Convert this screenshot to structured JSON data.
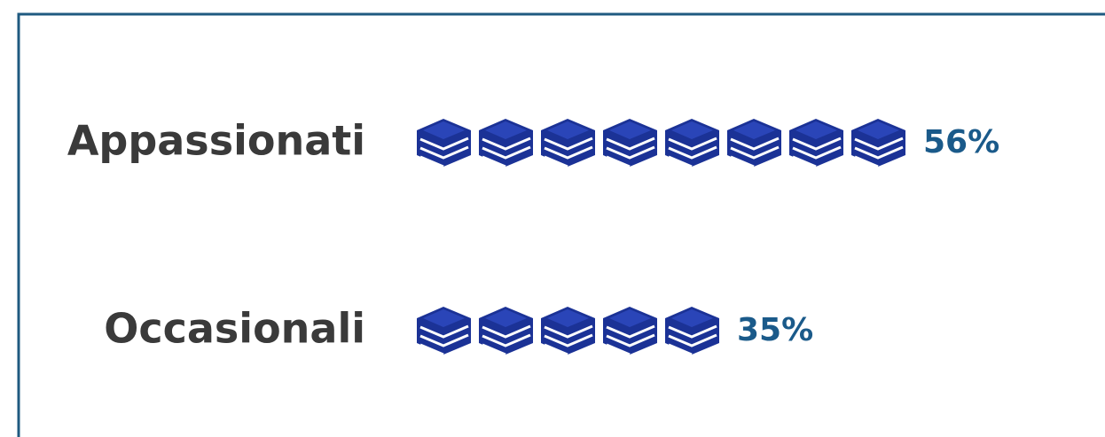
{
  "chart_data": {
    "type": "pictograph",
    "categories": [
      "Appassionati",
      "Occasionali"
    ],
    "values": [
      56,
      35
    ],
    "value_labels": [
      "56%",
      "35%"
    ],
    "color": "#1b3296"
  }
}
